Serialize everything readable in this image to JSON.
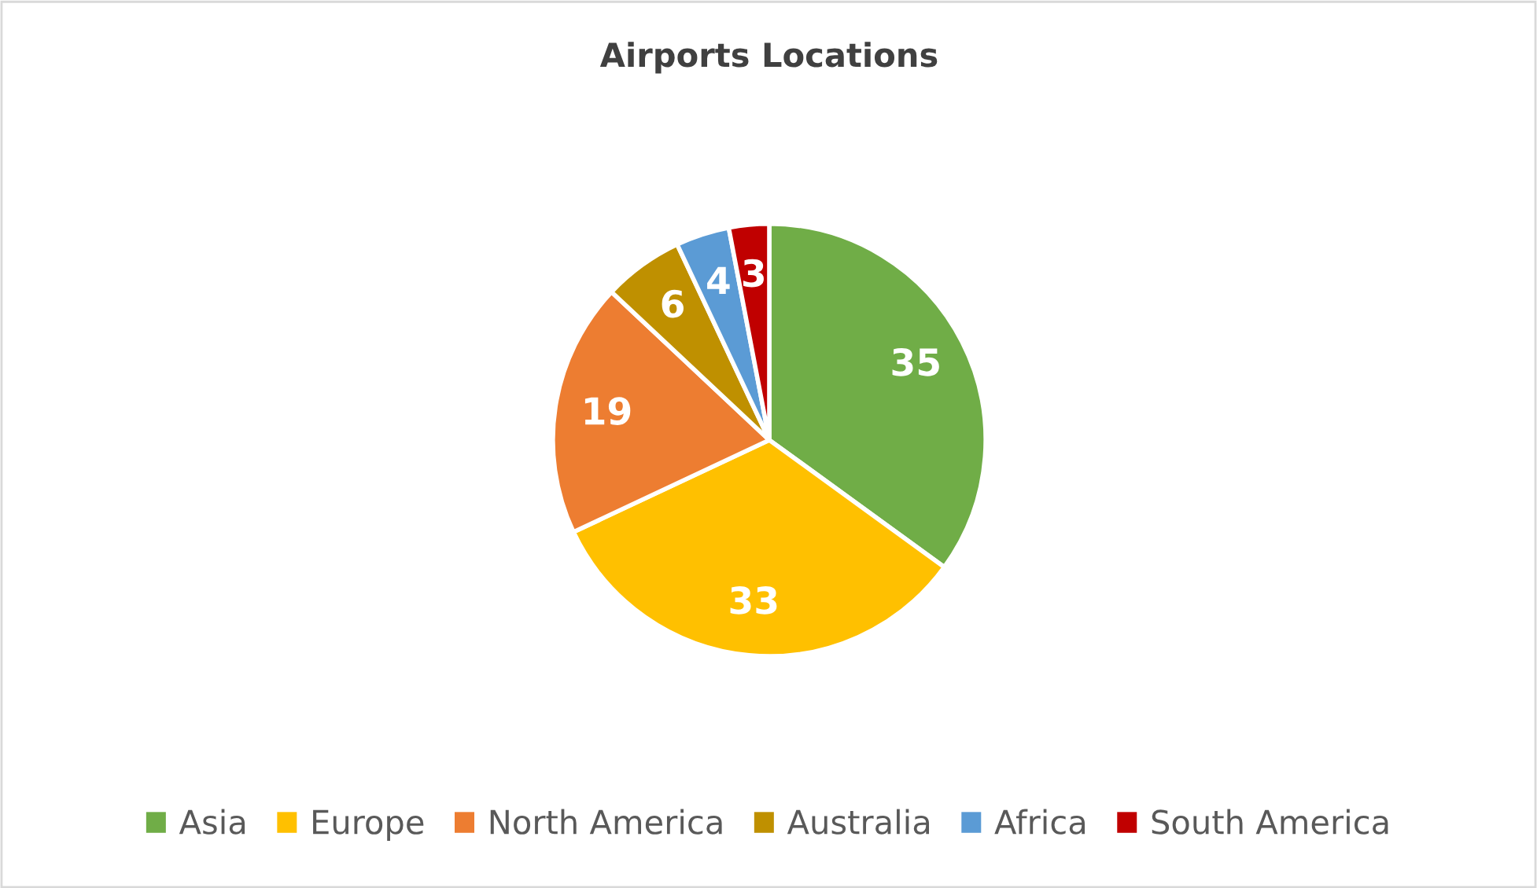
{
  "chart_data": {
    "type": "pie",
    "title": "Airports Locations",
    "categories": [
      "Asia",
      "Europe",
      "North America",
      "Australia",
      "Africa",
      "South America"
    ],
    "values": [
      35,
      33,
      19,
      6,
      4,
      3
    ],
    "colors": [
      "#70ad47",
      "#ffc000",
      "#ed7d31",
      "#bf9000",
      "#5b9bd5",
      "#c00000"
    ],
    "data_labels": true,
    "legend": "bottom"
  }
}
